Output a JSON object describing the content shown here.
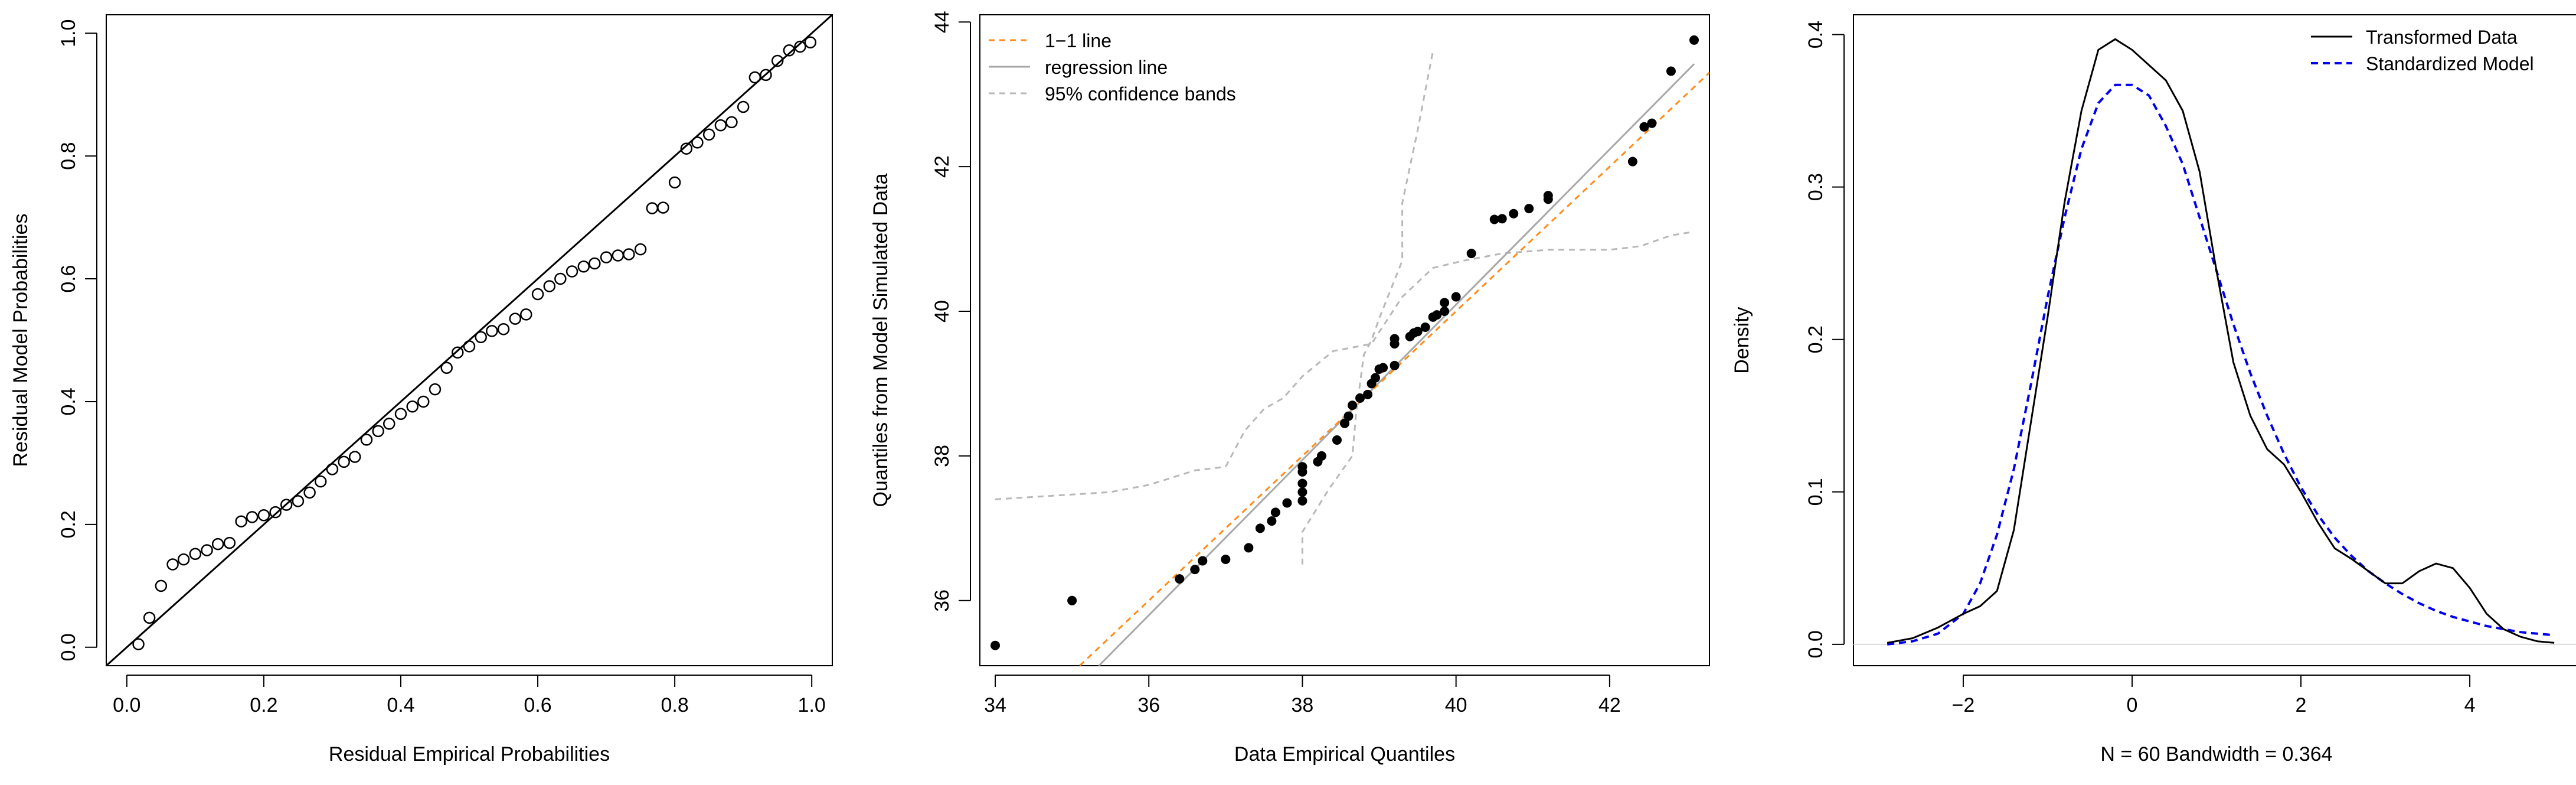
{
  "colors": {
    "black": "#000000",
    "orange": "#FF8C1A",
    "gray_reg": "#A8A8A8",
    "gray_band": "#B8B8B8",
    "blue": "#0000EE",
    "zero_line": "#D9D9D9"
  },
  "chart_data": [
    {
      "type": "scatter",
      "name": "pp-plot",
      "xlabel": "Residual Empirical Probabilities",
      "ylabel": "Residual Model Probabilities",
      "xlim": [
        -0.03,
        1.03
      ],
      "ylim": [
        -0.03,
        1.03
      ],
      "xticks": [
        0.0,
        0.2,
        0.4,
        0.6,
        0.8,
        1.0
      ],
      "yticks": [
        0.0,
        0.2,
        0.4,
        0.6,
        0.8,
        1.0
      ],
      "xtick_labels": [
        "0.0",
        "0.2",
        "0.4",
        "0.6",
        "0.8",
        "1.0"
      ],
      "ytick_labels": [
        "0.0",
        "0.2",
        "0.4",
        "0.6",
        "0.8",
        "1.0"
      ],
      "reference_line": {
        "type": "identity",
        "from": [
          -0.03,
          -0.03
        ],
        "to": [
          1.03,
          1.03
        ]
      },
      "marker": "open-circle",
      "x": [
        0.017,
        0.033,
        0.05,
        0.067,
        0.083,
        0.1,
        0.117,
        0.133,
        0.15,
        0.167,
        0.183,
        0.2,
        0.217,
        0.233,
        0.25,
        0.267,
        0.283,
        0.3,
        0.317,
        0.333,
        0.35,
        0.367,
        0.383,
        0.4,
        0.417,
        0.433,
        0.45,
        0.467,
        0.483,
        0.5,
        0.517,
        0.533,
        0.55,
        0.567,
        0.583,
        0.6,
        0.617,
        0.633,
        0.65,
        0.667,
        0.683,
        0.7,
        0.717,
        0.733,
        0.75,
        0.767,
        0.783,
        0.8,
        0.817,
        0.833,
        0.85,
        0.867,
        0.883,
        0.9,
        0.917,
        0.933,
        0.95,
        0.967,
        0.983,
        0.998
      ],
      "y": [
        0.005,
        0.048,
        0.1,
        0.135,
        0.143,
        0.152,
        0.158,
        0.168,
        0.17,
        0.205,
        0.212,
        0.215,
        0.22,
        0.232,
        0.238,
        0.252,
        0.27,
        0.29,
        0.302,
        0.31,
        0.338,
        0.352,
        0.364,
        0.38,
        0.392,
        0.4,
        0.42,
        0.455,
        0.48,
        0.49,
        0.505,
        0.515,
        0.518,
        0.535,
        0.542,
        0.575,
        0.588,
        0.6,
        0.612,
        0.62,
        0.625,
        0.635,
        0.638,
        0.64,
        0.648,
        0.715,
        0.716,
        0.757,
        0.812,
        0.822,
        0.835,
        0.85,
        0.855,
        0.88,
        0.928,
        0.932,
        0.955,
        0.972,
        0.978,
        0.985
      ]
    },
    {
      "type": "scatter",
      "name": "qq-plot",
      "xlabel": "Data Empirical Quantiles",
      "ylabel": "Quantiles from Model Simulated Data",
      "xlim": [
        33.8,
        43.3
      ],
      "ylim": [
        35.1,
        44.1
      ],
      "xticks": [
        34,
        36,
        38,
        40,
        42
      ],
      "yticks": [
        36,
        38,
        40,
        42,
        44
      ],
      "xtick_labels": [
        "34",
        "36",
        "38",
        "40",
        "42"
      ],
      "ytick_labels": [
        "36",
        "38",
        "40",
        "42",
        "44"
      ],
      "legend": [
        {
          "label": "1−1 line",
          "style": "dashed",
          "color": "orange"
        },
        {
          "label": "regression line",
          "style": "solid",
          "color": "gray_reg"
        },
        {
          "label": "95% confidence bands",
          "style": "dashed",
          "color": "gray_band"
        }
      ],
      "marker": "filled-circle",
      "points": [
        [
          34.0,
          35.38
        ],
        [
          35.0,
          36.0
        ],
        [
          36.4,
          36.3
        ],
        [
          36.6,
          36.43
        ],
        [
          36.7,
          36.55
        ],
        [
          37.0,
          36.57
        ],
        [
          37.3,
          36.73
        ],
        [
          37.45,
          37.0
        ],
        [
          37.6,
          37.1
        ],
        [
          37.65,
          37.22
        ],
        [
          37.8,
          37.35
        ],
        [
          38.0,
          37.38
        ],
        [
          38.0,
          37.5
        ],
        [
          38.0,
          37.62
        ],
        [
          38.0,
          37.78
        ],
        [
          38.0,
          37.85
        ],
        [
          38.2,
          37.92
        ],
        [
          38.25,
          38.0
        ],
        [
          38.45,
          38.22
        ],
        [
          38.55,
          38.45
        ],
        [
          38.6,
          38.55
        ],
        [
          38.65,
          38.7
        ],
        [
          38.75,
          38.8
        ],
        [
          38.85,
          38.85
        ],
        [
          38.9,
          39.0
        ],
        [
          38.95,
          39.08
        ],
        [
          39.0,
          39.2
        ],
        [
          39.05,
          39.22
        ],
        [
          39.2,
          39.25
        ],
        [
          39.2,
          39.55
        ],
        [
          39.2,
          39.62
        ],
        [
          39.4,
          39.65
        ],
        [
          39.45,
          39.7
        ],
        [
          39.5,
          39.72
        ],
        [
          39.6,
          39.78
        ],
        [
          39.7,
          39.92
        ],
        [
          39.75,
          39.95
        ],
        [
          39.85,
          40.0
        ],
        [
          39.85,
          40.12
        ],
        [
          40.0,
          40.2
        ],
        [
          40.2,
          40.8
        ],
        [
          40.5,
          41.27
        ],
        [
          40.6,
          41.28
        ],
        [
          40.75,
          41.35
        ],
        [
          40.95,
          41.42
        ],
        [
          41.2,
          41.55
        ],
        [
          41.2,
          41.6
        ],
        [
          42.3,
          42.07
        ],
        [
          42.45,
          42.55
        ],
        [
          42.55,
          42.6
        ],
        [
          42.8,
          43.32
        ],
        [
          43.1,
          43.75
        ]
      ],
      "identity_line": {
        "x": [
          35.0,
          43.3
        ],
        "y": [
          35.0,
          43.3
        ]
      },
      "regression_line": {
        "x": [
          35.35,
          43.1
        ],
        "y": [
          35.1,
          43.42
        ]
      },
      "upper_band": {
        "x": [
          38.0,
          38.0,
          38.35,
          38.65,
          38.7,
          38.8,
          38.9,
          39.0,
          39.3,
          39.3,
          39.5,
          39.7
        ],
        "y": [
          36.5,
          36.95,
          37.55,
          38.0,
          38.6,
          39.4,
          39.6,
          39.9,
          40.7,
          41.5,
          42.5,
          43.6
        ]
      },
      "lower_band": {
        "x": [
          34.0,
          35.5,
          36.0,
          36.6,
          37.0,
          37.25,
          37.5,
          37.75,
          38.0,
          38.4,
          38.9,
          39.3,
          39.7,
          40.1,
          40.6,
          41.2,
          42.0,
          42.4,
          42.8,
          43.1
        ],
        "y": [
          37.4,
          37.5,
          37.6,
          37.8,
          37.85,
          38.35,
          38.65,
          38.8,
          39.1,
          39.45,
          39.55,
          40.2,
          40.6,
          40.7,
          40.8,
          40.85,
          40.85,
          40.9,
          41.05,
          41.1
        ]
      }
    },
    {
      "type": "line",
      "name": "density-plot",
      "xlabel": "N = 60   Bandwidth = 0.364",
      "ylabel": "Density",
      "xlim": [
        -3.3,
        5.3
      ],
      "ylim": [
        -0.014,
        0.413
      ],
      "xticks": [
        -2,
        0,
        2,
        4
      ],
      "yticks": [
        0.0,
        0.1,
        0.2,
        0.3,
        0.4
      ],
      "xtick_labels": [
        "−2",
        "0",
        "2",
        "4"
      ],
      "ytick_labels": [
        "0.0",
        "0.1",
        "0.2",
        "0.3",
        "0.4"
      ],
      "legend": [
        {
          "label": "Transformed Data",
          "style": "solid",
          "color": "black"
        },
        {
          "label": "Standardized Model",
          "style": "dashed",
          "color": "blue"
        }
      ],
      "series": [
        {
          "name": "Transformed Data",
          "x": [
            -2.9,
            -2.6,
            -2.3,
            -2.0,
            -1.8,
            -1.6,
            -1.4,
            -1.2,
            -1.0,
            -0.8,
            -0.6,
            -0.4,
            -0.2,
            0.0,
            0.2,
            0.4,
            0.6,
            0.8,
            1.0,
            1.2,
            1.4,
            1.6,
            1.8,
            2.0,
            2.2,
            2.4,
            2.6,
            2.8,
            3.0,
            3.2,
            3.4,
            3.6,
            3.8,
            4.0,
            4.2,
            4.4,
            4.6,
            4.8,
            5.0
          ],
          "y": [
            0.001,
            0.004,
            0.011,
            0.02,
            0.025,
            0.035,
            0.075,
            0.145,
            0.215,
            0.29,
            0.35,
            0.39,
            0.397,
            0.39,
            0.38,
            0.37,
            0.35,
            0.31,
            0.245,
            0.185,
            0.15,
            0.128,
            0.118,
            0.1,
            0.08,
            0.063,
            0.056,
            0.048,
            0.04,
            0.04,
            0.048,
            0.053,
            0.05,
            0.037,
            0.02,
            0.01,
            0.005,
            0.002,
            0.001
          ]
        },
        {
          "name": "Standardized Model",
          "x": [
            -2.9,
            -2.6,
            -2.3,
            -2.0,
            -1.8,
            -1.6,
            -1.4,
            -1.2,
            -1.0,
            -0.8,
            -0.6,
            -0.4,
            -0.2,
            0.0,
            0.2,
            0.4,
            0.6,
            0.8,
            1.0,
            1.2,
            1.4,
            1.6,
            1.8,
            2.0,
            2.2,
            2.4,
            2.6,
            2.8,
            3.0,
            3.2,
            3.4,
            3.6,
            3.8,
            4.0,
            4.2,
            4.4,
            4.6,
            4.8,
            5.0
          ],
          "y": [
            0.0,
            0.002,
            0.007,
            0.02,
            0.04,
            0.072,
            0.115,
            0.17,
            0.228,
            0.28,
            0.325,
            0.355,
            0.367,
            0.367,
            0.36,
            0.34,
            0.315,
            0.28,
            0.245,
            0.21,
            0.178,
            0.15,
            0.125,
            0.103,
            0.085,
            0.07,
            0.058,
            0.048,
            0.04,
            0.033,
            0.027,
            0.022,
            0.018,
            0.015,
            0.012,
            0.01,
            0.008,
            0.007,
            0.006
          ]
        }
      ],
      "reference_line": {
        "y": 0.0
      }
    }
  ]
}
